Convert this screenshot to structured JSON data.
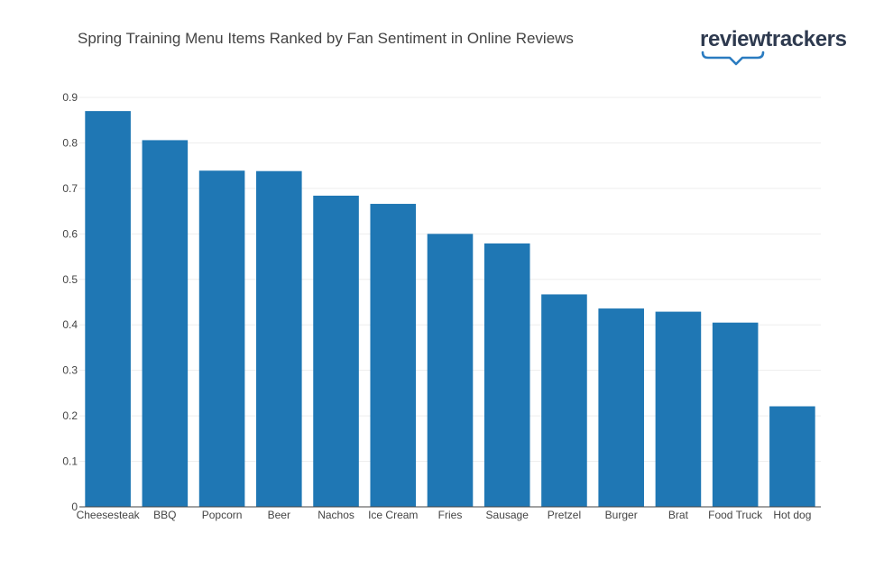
{
  "header": {
    "title": "Spring Training Menu Items Ranked by Fan Sentiment in Online Reviews",
    "logo_text": "reviewtrackers"
  },
  "colors": {
    "bar": "#1f77b4",
    "grid": "#eeeeee",
    "axis": "#444444",
    "logo": "#2e3a4f",
    "logo_accent": "#2a7bc0"
  },
  "chart_data": {
    "type": "bar",
    "title": "Spring Training Menu Items Ranked by Fan Sentiment in Online Reviews",
    "xlabel": "",
    "ylabel": "",
    "ylim": [
      0,
      0.9
    ],
    "yticks": [
      0,
      0.1,
      0.2,
      0.3,
      0.4,
      0.5,
      0.6,
      0.7,
      0.8,
      0.9
    ],
    "ytick_labels": [
      "0",
      "0.1",
      "0.2",
      "0.3",
      "0.4",
      "0.5",
      "0.6",
      "0.7",
      "0.8",
      "0.9"
    ],
    "grid": true,
    "categories": [
      "Cheesesteak",
      "BBQ",
      "Popcorn",
      "Beer",
      "Nachos",
      "Ice Cream",
      "Fries",
      "Sausage",
      "Pretzel",
      "Burger",
      "Brat",
      "Food Truck",
      "Hot dog"
    ],
    "values": [
      0.87,
      0.806,
      0.739,
      0.738,
      0.684,
      0.666,
      0.6,
      0.579,
      0.467,
      0.436,
      0.429,
      0.405,
      0.221
    ]
  }
}
